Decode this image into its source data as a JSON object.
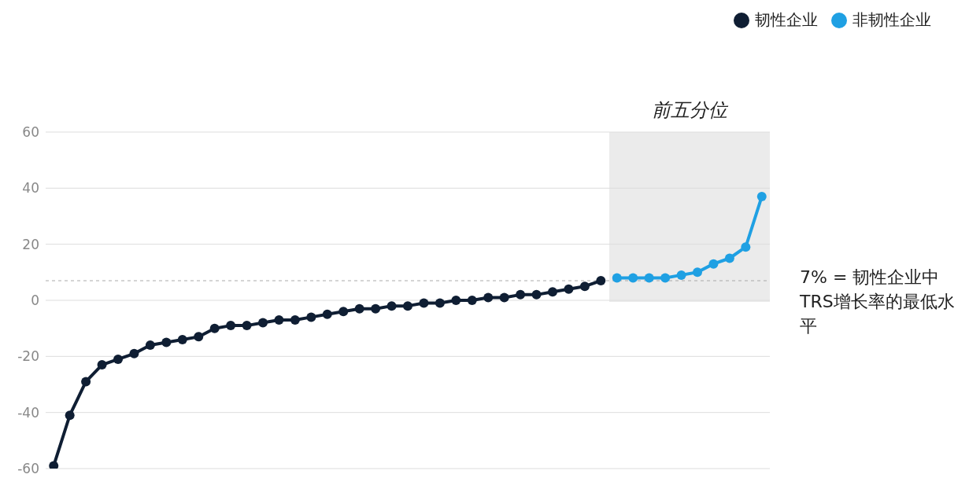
{
  "chart_data": {
    "type": "line",
    "categories": [
      null,
      null,
      null,
      null,
      null,
      null,
      null,
      null,
      null,
      null,
      null,
      null,
      null,
      null,
      null,
      null,
      null,
      null,
      null,
      null,
      null,
      null,
      null,
      null,
      null,
      null,
      null,
      null,
      null,
      null,
      null,
      null,
      null,
      null,
      null,
      null,
      null,
      null,
      null,
      null,
      null,
      null,
      null,
      null,
      null
    ],
    "ylim": [
      -60,
      60
    ],
    "yticks": [
      -60,
      -40,
      -20,
      0,
      20,
      40,
      60
    ],
    "grid": "y",
    "legend": "top right",
    "marker": "circle",
    "series": [
      {
        "name": "韧性企业",
        "color": "#0f1e33",
        "values": [
          -59,
          -41,
          -29,
          -23,
          -21,
          -19,
          -16,
          -15,
          -14,
          -13,
          -10,
          -9,
          -9,
          -8,
          -7,
          -7,
          -6,
          -5,
          -4,
          -3,
          -3,
          -2,
          -2,
          -1,
          -1,
          0,
          0,
          1,
          1,
          2,
          2,
          3,
          4,
          5,
          7,
          null,
          null,
          null,
          null,
          null,
          null,
          null,
          null,
          null,
          null
        ]
      },
      {
        "name": "非韧性企业",
        "color": "#1fa0e3",
        "values": [
          null,
          null,
          null,
          null,
          null,
          null,
          null,
          null,
          null,
          null,
          null,
          null,
          null,
          null,
          null,
          null,
          null,
          null,
          null,
          null,
          null,
          null,
          null,
          null,
          null,
          null,
          null,
          null,
          null,
          null,
          null,
          null,
          null,
          null,
          null,
          8,
          8,
          8,
          8,
          9,
          10,
          13,
          15,
          19,
          37
        ]
      }
    ],
    "annotations": [
      "前五分位"
    ],
    "ref_lines": [
      {
        "axis": "y",
        "value": 7,
        "label": "7% = 韧性企业中TRS增长率的最低水平",
        "color": "#aaaaaa",
        "line_style": "dashed"
      }
    ]
  }
}
